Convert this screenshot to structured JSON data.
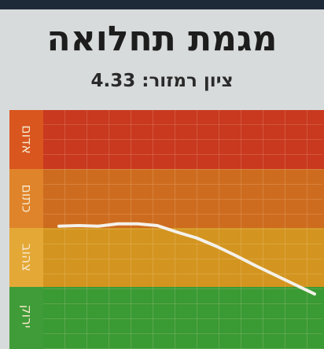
{
  "header": {
    "title": "מגמת תחלואה",
    "score": "ציון רמזור: 4.33"
  },
  "chart_data": {
    "type": "line",
    "zones": [
      {
        "label": "אדום",
        "color": "#c8391f",
        "tab": "#d9561f"
      },
      {
        "label": "כתום",
        "color": "#cd6c1f",
        "tab": "#e0842b"
      },
      {
        "label": "צהוב",
        "color": "#d3951f",
        "tab": "#e4a836"
      },
      {
        "label": "ירוק",
        "color": "#3a9a33",
        "tab": "#3f9c38"
      }
    ],
    "ylim": [
      0,
      4
    ],
    "series": [
      {
        "color": "#f4f1ea",
        "values": [
          2.03,
          2.04,
          2.03,
          2.07,
          2.07,
          2.04,
          1.93,
          1.83,
          1.69,
          1.53,
          1.36,
          1.2,
          1.04,
          0.88
        ]
      }
    ]
  }
}
